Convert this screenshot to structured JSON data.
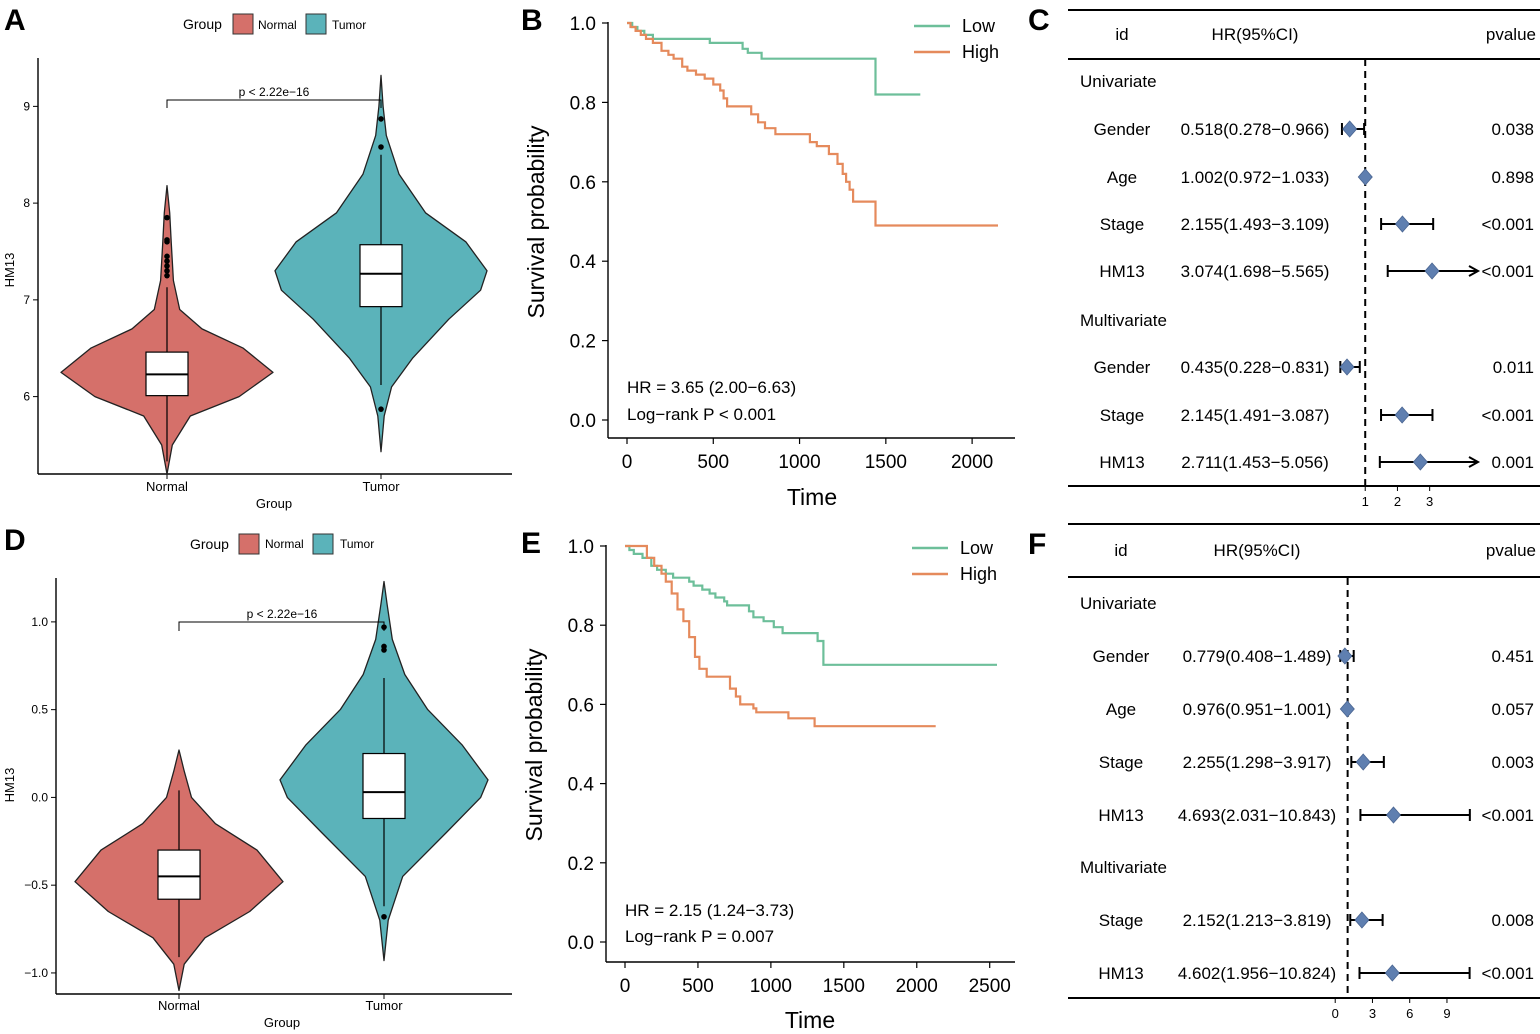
{
  "colors": {
    "normal": "#D5706A",
    "tumor": "#5BB3BA",
    "low": "#6DBF9A",
    "high": "#E58A5C",
    "diamond": "#5F7FB0",
    "ink": "#000000"
  },
  "chart_data": [
    {
      "panel": "A",
      "type": "violin",
      "legend_title": "Group",
      "legend": [
        "Normal",
        "Tumor"
      ],
      "categories": [
        "Normal",
        "Tumor"
      ],
      "xlabel": "Group",
      "ylabel": "HM13",
      "ylim": [
        5.2,
        9.5
      ],
      "yticks": [
        6,
        7,
        8,
        9
      ],
      "annotation": "p < 2.22e−16",
      "violins": [
        {
          "name": "Normal",
          "color": "normal",
          "min": 5.2,
          "max": 8.18,
          "q1": 6.01,
          "median": 6.23,
          "q3": 6.46,
          "whisker_low": 5.33,
          "whisker_high": 7.13,
          "outliers": [
            7.25,
            7.3,
            7.35,
            7.4,
            7.45,
            7.6,
            7.62,
            7.85
          ],
          "widths": [
            [
              5.2,
              0
            ],
            [
              5.5,
              0.05
            ],
            [
              5.8,
              0.22
            ],
            [
              6.0,
              0.68
            ],
            [
              6.25,
              1.0
            ],
            [
              6.5,
              0.72
            ],
            [
              6.7,
              0.33
            ],
            [
              6.9,
              0.12
            ],
            [
              7.2,
              0.06
            ],
            [
              7.6,
              0.04
            ],
            [
              7.9,
              0.025
            ],
            [
              8.18,
              0
            ]
          ]
        },
        {
          "name": "Tumor",
          "color": "tumor",
          "min": 5.43,
          "max": 9.32,
          "q1": 6.93,
          "median": 7.27,
          "q3": 7.57,
          "whisker_low": 6.12,
          "whisker_high": 8.5,
          "outliers": [
            5.87,
            8.58,
            8.87
          ],
          "widths": [
            [
              5.43,
              0
            ],
            [
              5.8,
              0.03
            ],
            [
              6.1,
              0.1
            ],
            [
              6.4,
              0.3
            ],
            [
              6.8,
              0.64
            ],
            [
              7.1,
              0.94
            ],
            [
              7.3,
              1.0
            ],
            [
              7.6,
              0.8
            ],
            [
              7.9,
              0.42
            ],
            [
              8.3,
              0.17
            ],
            [
              8.7,
              0.05
            ],
            [
              9.0,
              0.02
            ],
            [
              9.32,
              0
            ]
          ]
        }
      ]
    },
    {
      "panel": "B",
      "type": "line",
      "subtype": "kaplan-meier",
      "xlabel": "Time",
      "ylabel": "Survival probability",
      "xlim": [
        0,
        2150
      ],
      "ylim": [
        0,
        1
      ],
      "xticks": [
        0,
        500,
        1000,
        1500,
        2000
      ],
      "yticks": [
        0.0,
        0.2,
        0.4,
        0.6,
        0.8,
        1.0
      ],
      "hr_text": "HR = 3.65 (2.00−6.63)",
      "p_text": "Log−rank P < 0.001",
      "series": [
        {
          "name": "Low",
          "color": "low",
          "points": [
            [
              0,
              1.0
            ],
            [
              30,
              0.99
            ],
            [
              60,
              0.98
            ],
            [
              100,
              0.97
            ],
            [
              150,
              0.96
            ],
            [
              300,
              0.96
            ],
            [
              480,
              0.95
            ],
            [
              650,
              0.95
            ],
            [
              670,
              0.935
            ],
            [
              700,
              0.925
            ],
            [
              780,
              0.91
            ],
            [
              1440,
              0.91
            ],
            [
              1440,
              0.82
            ],
            [
              1700,
              0.82
            ]
          ]
        },
        {
          "name": "High",
          "color": "high",
          "points": [
            [
              0,
              1.0
            ],
            [
              20,
              0.99
            ],
            [
              50,
              0.98
            ],
            [
              80,
              0.97
            ],
            [
              110,
              0.96
            ],
            [
              150,
              0.95
            ],
            [
              200,
              0.93
            ],
            [
              240,
              0.92
            ],
            [
              270,
              0.91
            ],
            [
              320,
              0.89
            ],
            [
              350,
              0.88
            ],
            [
              400,
              0.87
            ],
            [
              450,
              0.86
            ],
            [
              500,
              0.845
            ],
            [
              540,
              0.83
            ],
            [
              560,
              0.81
            ],
            [
              580,
              0.79
            ],
            [
              700,
              0.79
            ],
            [
              720,
              0.77
            ],
            [
              760,
              0.75
            ],
            [
              800,
              0.735
            ],
            [
              860,
              0.72
            ],
            [
              1000,
              0.72
            ],
            [
              1060,
              0.7
            ],
            [
              1100,
              0.69
            ],
            [
              1170,
              0.67
            ],
            [
              1220,
              0.645
            ],
            [
              1250,
              0.62
            ],
            [
              1270,
              0.6
            ],
            [
              1290,
              0.58
            ],
            [
              1310,
              0.55
            ],
            [
              1440,
              0.49
            ],
            [
              2150,
              0.49
            ]
          ]
        }
      ]
    },
    {
      "panel": "C",
      "type": "forest",
      "columns": [
        "id",
        "HR(95%CI)",
        "pvalue"
      ],
      "xticks": [
        1,
        2,
        3
      ],
      "xlim": [
        0,
        4.5
      ],
      "reference": 1,
      "rows": [
        {
          "kind": "header",
          "label": "Univariate"
        },
        {
          "kind": "row",
          "label": "Gender",
          "ci": "0.518(0.278−0.966)",
          "p": "0.038",
          "hr": 0.518,
          "lo": 0.278,
          "hi": 0.966
        },
        {
          "kind": "row",
          "label": "Age",
          "ci": "1.002(0.972−1.033)",
          "p": "0.898",
          "hr": 1.002,
          "lo": 0.972,
          "hi": 1.033
        },
        {
          "kind": "row",
          "label": "Stage",
          "ci": "2.155(1.493−3.109)",
          "p": "<0.001",
          "hr": 2.155,
          "lo": 1.493,
          "hi": 3.109
        },
        {
          "kind": "row",
          "label": "HM13",
          "ci": "3.074(1.698−5.565)",
          "p": "<0.001",
          "hr": 3.074,
          "lo": 1.698,
          "hi": 5.565
        },
        {
          "kind": "header",
          "label": "Multivariate"
        },
        {
          "kind": "row",
          "label": "Gender",
          "ci": "0.435(0.228−0.831)",
          "p": "0.011",
          "hr": 0.435,
          "lo": 0.228,
          "hi": 0.831
        },
        {
          "kind": "row",
          "label": "Stage",
          "ci": "2.145(1.491−3.087)",
          "p": "<0.001",
          "hr": 2.145,
          "lo": 1.491,
          "hi": 3.087
        },
        {
          "kind": "row",
          "label": "HM13",
          "ci": "2.711(1.453−5.056)",
          "p": "0.001",
          "hr": 2.711,
          "lo": 1.453,
          "hi": 5.056
        }
      ]
    },
    {
      "panel": "D",
      "type": "violin",
      "legend_title": "Group",
      "legend": [
        "Normal",
        "Tumor"
      ],
      "categories": [
        "Normal",
        "Tumor"
      ],
      "xlabel": "Group",
      "ylabel": "HM13",
      "ylim": [
        -1.12,
        1.25
      ],
      "yticks": [
        -1.0,
        -0.5,
        0.0,
        0.5,
        1.0
      ],
      "ytick_labels": [
        "−1.0",
        "−0.5",
        "0.0",
        "0.5",
        "1.0"
      ],
      "annotation": "p < 2.22e−16",
      "violins": [
        {
          "name": "Normal",
          "color": "normal",
          "min": -1.1,
          "max": 0.27,
          "q1": -0.58,
          "median": -0.45,
          "q3": -0.3,
          "whisker_low": -0.91,
          "whisker_high": 0.04,
          "outliers": [],
          "widths": [
            [
              -1.1,
              0
            ],
            [
              -0.95,
              0.05
            ],
            [
              -0.8,
              0.25
            ],
            [
              -0.65,
              0.68
            ],
            [
              -0.48,
              1.0
            ],
            [
              -0.3,
              0.75
            ],
            [
              -0.15,
              0.35
            ],
            [
              0.0,
              0.12
            ],
            [
              0.15,
              0.05
            ],
            [
              0.27,
              0
            ]
          ]
        },
        {
          "name": "Tumor",
          "color": "tumor",
          "min": -0.93,
          "max": 1.23,
          "q1": -0.12,
          "median": 0.03,
          "q3": 0.25,
          "whisker_low": -0.62,
          "whisker_high": 0.68,
          "outliers": [
            -0.68,
            0.84,
            0.86,
            0.97
          ],
          "widths": [
            [
              -0.93,
              0
            ],
            [
              -0.7,
              0.04
            ],
            [
              -0.45,
              0.18
            ],
            [
              -0.2,
              0.6
            ],
            [
              0.0,
              0.93
            ],
            [
              0.1,
              1.0
            ],
            [
              0.3,
              0.75
            ],
            [
              0.5,
              0.42
            ],
            [
              0.7,
              0.2
            ],
            [
              0.9,
              0.08
            ],
            [
              1.1,
              0.03
            ],
            [
              1.23,
              0
            ]
          ]
        }
      ]
    },
    {
      "panel": "E",
      "type": "line",
      "subtype": "kaplan-meier",
      "xlabel": "Time",
      "ylabel": "Survival probability",
      "xlim": [
        0,
        2550
      ],
      "ylim": [
        0,
        1
      ],
      "xticks": [
        0,
        500,
        1000,
        1500,
        2000,
        2500
      ],
      "yticks": [
        0.0,
        0.2,
        0.4,
        0.6,
        0.8,
        1.0
      ],
      "hr_text": "HR = 2.15 (1.24−3.73)",
      "p_text": "Log−rank P = 0.007",
      "series": [
        {
          "name": "Low",
          "color": "low",
          "points": [
            [
              0,
              1.0
            ],
            [
              30,
              0.99
            ],
            [
              60,
              0.98
            ],
            [
              120,
              0.97
            ],
            [
              180,
              0.95
            ],
            [
              220,
              0.94
            ],
            [
              280,
              0.93
            ],
            [
              330,
              0.92
            ],
            [
              400,
              0.92
            ],
            [
              440,
              0.91
            ],
            [
              470,
              0.9
            ],
            [
              530,
              0.89
            ],
            [
              580,
              0.88
            ],
            [
              620,
              0.87
            ],
            [
              680,
              0.86
            ],
            [
              700,
              0.85
            ],
            [
              820,
              0.85
            ],
            [
              850,
              0.835
            ],
            [
              880,
              0.82
            ],
            [
              950,
              0.81
            ],
            [
              1020,
              0.795
            ],
            [
              1080,
              0.78
            ],
            [
              1320,
              0.78
            ],
            [
              1320,
              0.76
            ],
            [
              1360,
              0.7
            ],
            [
              2550,
              0.7
            ]
          ]
        },
        {
          "name": "High",
          "color": "high",
          "points": [
            [
              0,
              1.0
            ],
            [
              120,
              1.0
            ],
            [
              150,
              0.97
            ],
            [
              200,
              0.95
            ],
            [
              250,
              0.93
            ],
            [
              280,
              0.91
            ],
            [
              320,
              0.88
            ],
            [
              360,
              0.84
            ],
            [
              400,
              0.81
            ],
            [
              440,
              0.77
            ],
            [
              480,
              0.72
            ],
            [
              510,
              0.69
            ],
            [
              560,
              0.67
            ],
            [
              680,
              0.67
            ],
            [
              720,
              0.64
            ],
            [
              760,
              0.62
            ],
            [
              790,
              0.6
            ],
            [
              880,
              0.59
            ],
            [
              900,
              0.58
            ],
            [
              1100,
              0.58
            ],
            [
              1120,
              0.565
            ],
            [
              1280,
              0.565
            ],
            [
              1300,
              0.545
            ],
            [
              2130,
              0.545
            ]
          ]
        }
      ]
    },
    {
      "panel": "F",
      "type": "forest",
      "columns": [
        "id",
        "HR(95%CI)",
        "pvalue"
      ],
      "xticks": [
        0,
        3,
        6,
        9
      ],
      "xlim": [
        -0.5,
        11.5
      ],
      "reference": 1,
      "rows": [
        {
          "kind": "header",
          "label": "Univariate"
        },
        {
          "kind": "row",
          "label": "Gender",
          "ci": "0.779(0.408−1.489)",
          "p": "0.451",
          "hr": 0.779,
          "lo": 0.408,
          "hi": 1.489
        },
        {
          "kind": "row",
          "label": "Age",
          "ci": "0.976(0.951−1.001)",
          "p": "0.057",
          "hr": 0.976,
          "lo": 0.951,
          "hi": 1.001
        },
        {
          "kind": "row",
          "label": "Stage",
          "ci": "2.255(1.298−3.917)",
          "p": "0.003",
          "hr": 2.255,
          "lo": 1.298,
          "hi": 3.917
        },
        {
          "kind": "row",
          "label": "HM13",
          "ci": "4.693(2.031−10.843)",
          "p": "<0.001",
          "hr": 4.693,
          "lo": 2.031,
          "hi": 10.843
        },
        {
          "kind": "header",
          "label": "Multivariate"
        },
        {
          "kind": "row",
          "label": "Stage",
          "ci": "2.152(1.213−3.819)",
          "p": "0.008",
          "hr": 2.152,
          "lo": 1.213,
          "hi": 3.819
        },
        {
          "kind": "row",
          "label": "HM13",
          "ci": "4.602(1.956−10.824)",
          "p": "<0.001",
          "hr": 4.602,
          "lo": 1.956,
          "hi": 10.824
        }
      ]
    }
  ]
}
